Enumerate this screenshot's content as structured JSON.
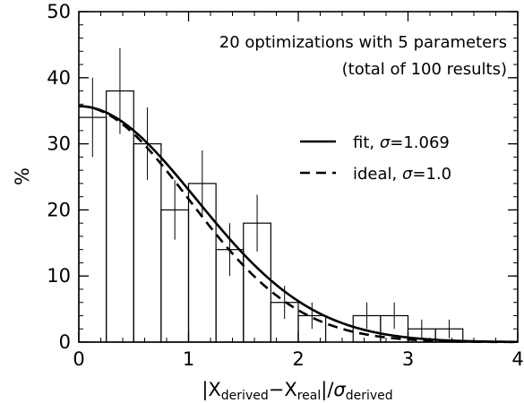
{
  "chart_data": {
    "type": "bar",
    "x_range": [
      0,
      4
    ],
    "y_range": [
      0,
      50
    ],
    "x_ticks": [
      0,
      1,
      2,
      3,
      4
    ],
    "y_ticks": [
      0,
      10,
      20,
      30,
      40,
      50
    ],
    "x_tick_labels": [
      "0",
      "1",
      "2",
      "3",
      "4"
    ],
    "y_tick_labels": [
      "0",
      "10",
      "20",
      "30",
      "40",
      "50"
    ],
    "ylabel": "%",
    "xlabel": {
      "prefix": "|X",
      "sub1": "derived",
      "mid": "−X",
      "sub2": "real",
      "post": "|/",
      "sigma": "σ",
      "sub3": "derived"
    },
    "annotation": {
      "line1": "20 optimizations with 5 parameters",
      "line2": "(total of 100 results)"
    },
    "legend": {
      "placement": "right",
      "entries": [
        {
          "label": "fit, ",
          "sigma": "σ",
          "value": "=1.069",
          "style": "solid"
        },
        {
          "label": "ideal, ",
          "sigma": "σ",
          "value": "=1.0",
          "style": "dashed"
        }
      ]
    },
    "bin_width": 0.25,
    "histogram": [
      {
        "x0": 0.0,
        "value": 34,
        "err": 6
      },
      {
        "x0": 0.25,
        "value": 38,
        "err": 6.5
      },
      {
        "x0": 0.5,
        "value": 30,
        "err": 5.5
      },
      {
        "x0": 0.75,
        "value": 20,
        "err": 4.5
      },
      {
        "x0": 1.0,
        "value": 24,
        "err": 5
      },
      {
        "x0": 1.25,
        "value": 14,
        "err": 4
      },
      {
        "x0": 1.5,
        "value": 18,
        "err": 4.3
      },
      {
        "x0": 1.75,
        "value": 6,
        "err": 2.5
      },
      {
        "x0": 2.0,
        "value": 4,
        "err": 2
      },
      {
        "x0": 2.25,
        "value": 0,
        "err": 0
      },
      {
        "x0": 2.5,
        "value": 4,
        "err": 2
      },
      {
        "x0": 2.75,
        "value": 4,
        "err": 2
      },
      {
        "x0": 3.0,
        "value": 2,
        "err": 1.4
      },
      {
        "x0": 3.25,
        "value": 2,
        "err": 1.4
      },
      {
        "x0": 3.5,
        "value": 0,
        "err": 0
      },
      {
        "x0": 3.75,
        "value": 0,
        "err": 0
      }
    ],
    "curves": [
      {
        "name": "fit",
        "amplitude": 35.7,
        "sigma": 1.069,
        "style": "solid"
      },
      {
        "name": "ideal",
        "amplitude": 35.7,
        "sigma": 1.0,
        "style": "dashed"
      }
    ]
  }
}
